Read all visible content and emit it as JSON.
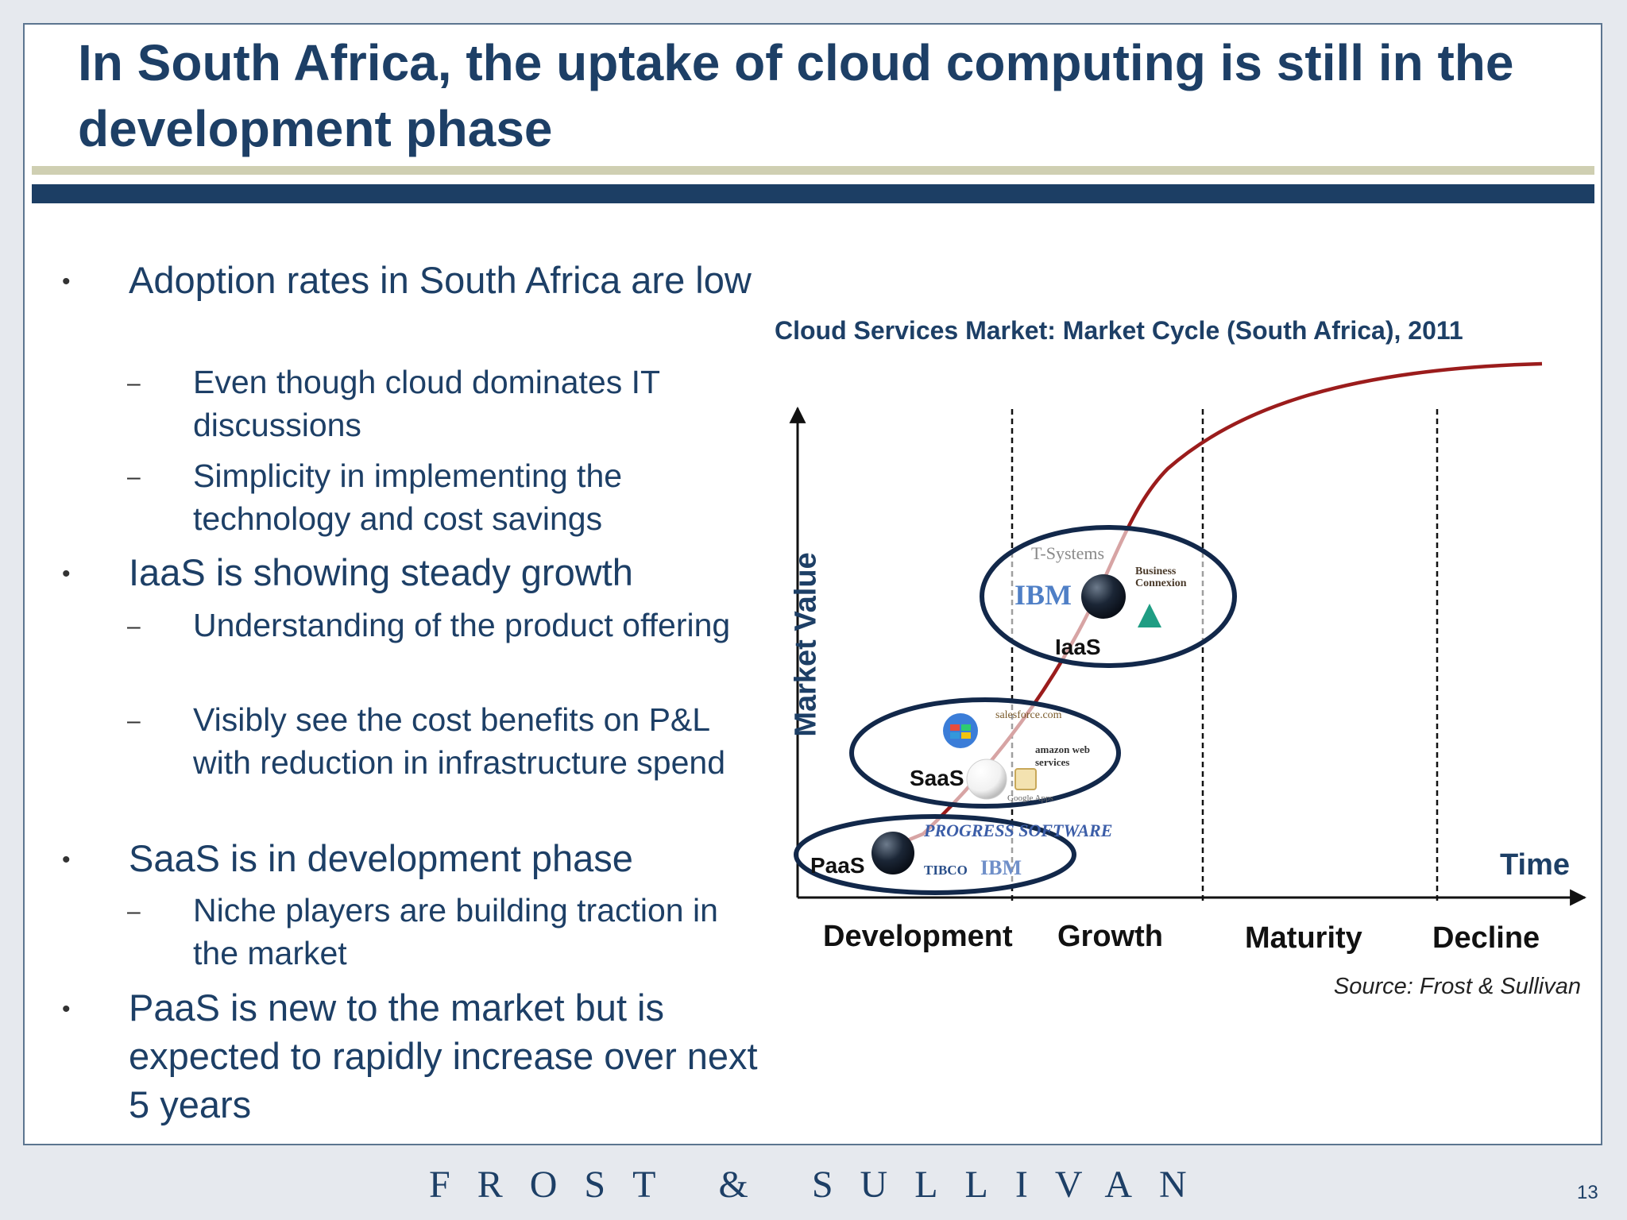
{
  "title": "In South Africa, the uptake of cloud computing is still in the development phase",
  "bullets": {
    "b1": "Adoption rates in South Africa are low",
    "b1_s1": "Even though cloud dominates IT discussions",
    "b1_s2": "Simplicity in implementing the technology and cost savings",
    "b2": "IaaS is showing steady growth",
    "b2_s1": "Understanding of the product offering",
    "b2_s2": "Visibly see the cost benefits on P&L with reduction in infrastructure spend",
    "b3": "SaaS is in development phase",
    "b3_s1": "Niche players are building traction in the market",
    "b4": "PaaS is new to the market but is expected to rapidly increase over next 5 years",
    "bullet_symbol": "•",
    "dash_symbol": "–"
  },
  "chart_data": {
    "type": "diagram",
    "title": "Cloud Services Market: Market Cycle (South Africa), 2011",
    "xlabel": "Time",
    "ylabel": "Market Value",
    "phases": [
      "Development",
      "Growth",
      "Maturity",
      "Decline"
    ],
    "services": [
      {
        "name": "PaaS",
        "logos": [
          "PROGRESS SOFTWARE",
          "TIBCO",
          "IBM"
        ]
      },
      {
        "name": "SaaS",
        "logos": [
          "salesforce.com",
          "amazon web services",
          "Google Apps"
        ]
      },
      {
        "name": "IaaS",
        "logos": [
          "T-Systems",
          "Business Connexion",
          "IBM"
        ]
      }
    ],
    "curve_color": "#9b1c1c",
    "ellipse_color": "#12284a",
    "source": "Source: Frost & Sullivan"
  },
  "footer": {
    "brand": "FROST & SULLIVAN",
    "page_number": "13"
  },
  "colors": {
    "title": "#1d3f66",
    "rule_navy": "#1c3e64",
    "rule_tan": "#cfcfb2"
  }
}
